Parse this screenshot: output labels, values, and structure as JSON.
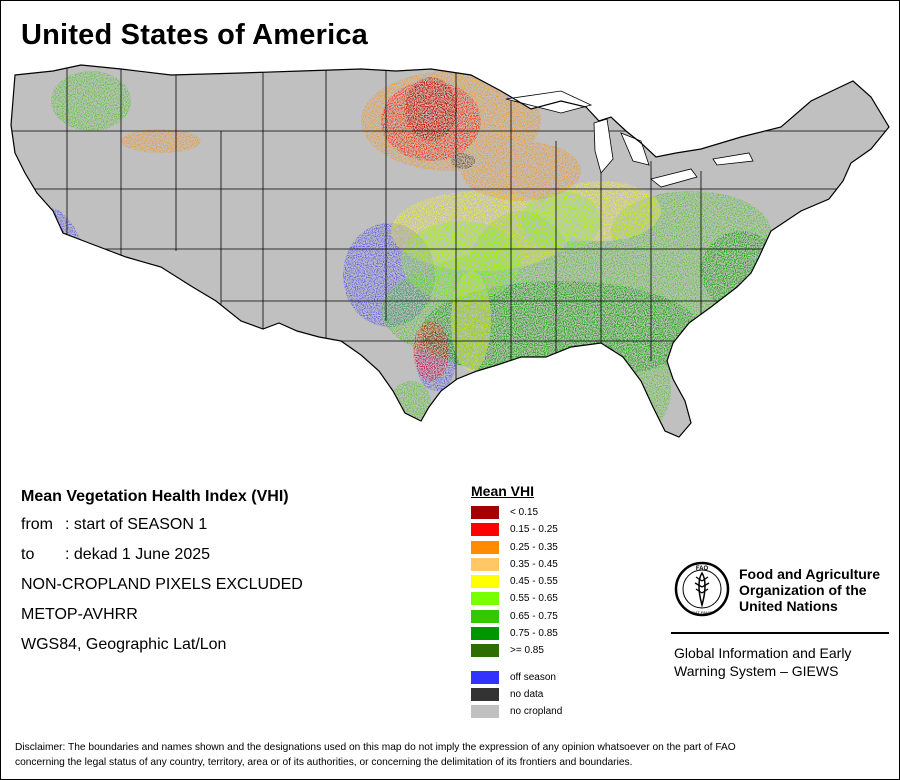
{
  "title": "United States of America",
  "info": {
    "heading": "Mean Vegetation Health Index (VHI)",
    "from_label": "from",
    "from_value": ": start of SEASON 1",
    "to_label": "to",
    "to_value": ": dekad 1 June 2025",
    "line_cropland": "NON-CROPLAND PIXELS EXCLUDED",
    "line_sensor": "METOP-AVHRR",
    "line_projection": "WGS84, Geographic Lat/Lon"
  },
  "legend": {
    "title": "Mean VHI",
    "classes": [
      {
        "label": "< 0.15",
        "color": "#a50000"
      },
      {
        "label": "0.15 - 0.25",
        "color": "#ff0000"
      },
      {
        "label": "0.25 - 0.35",
        "color": "#ff8c00"
      },
      {
        "label": "0.35 - 0.45",
        "color": "#ffc864"
      },
      {
        "label": "0.45 - 0.55",
        "color": "#ffff00"
      },
      {
        "label": "0.55 - 0.65",
        "color": "#78ff00"
      },
      {
        "label": "0.65 - 0.75",
        "color": "#32c800"
      },
      {
        "label": "0.75 - 0.85",
        "color": "#009600"
      },
      {
        "label": ">= 0.85",
        "color": "#2d6e00"
      }
    ],
    "extras": [
      {
        "label": "off season",
        "color": "#3333ff"
      },
      {
        "label": "no data",
        "color": "#333333"
      },
      {
        "label": "no cropland",
        "color": "#c0c0c0"
      }
    ]
  },
  "organization": {
    "name_line1": "Food and Agriculture",
    "name_line2": "Organization of the",
    "name_line3": "United Nations",
    "logo_text": "FAO",
    "logo_motto": "FIAT PANIS",
    "system_line1": "Global Information and Early",
    "system_line2": "Warning System – GIEWS"
  },
  "disclaimer": {
    "line1": "Disclaimer: The boundaries and names shown and the designations used on this map do not imply the expression of any opinion whatsoever on the part of FAO",
    "line2": "concerning the legal status of any country, territory, area or of its authorities, or concerning the delimitation of its frontiers and boundaries."
  }
}
